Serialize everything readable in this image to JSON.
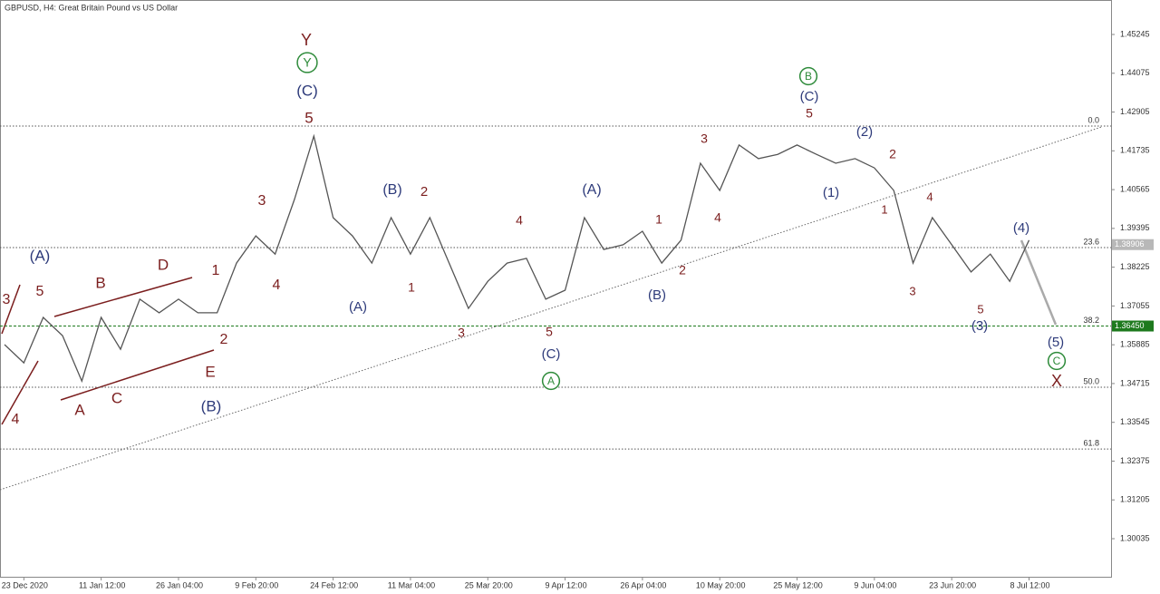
{
  "chart_data": {
    "type": "line",
    "title": "GBPUSD, H4:  Great Britain Pound vs US Dollar",
    "categories": [
      null,
      "23 Dec 2020",
      null,
      null,
      null,
      "11 Jan 12:00",
      null,
      null,
      null,
      "26 Jan 04:00",
      null,
      null,
      null,
      "9 Feb 20:00",
      null,
      null,
      null,
      "24 Feb 12:00",
      null,
      null,
      null,
      "11 Mar 04:00",
      null,
      null,
      null,
      "25 Mar 20:00",
      null,
      null,
      null,
      "9 Apr 12:00",
      null,
      null,
      null,
      "26 Apr 04:00",
      null,
      null,
      null,
      "10 May 20:00",
      null,
      null,
      null,
      "25 May 12:00",
      null,
      null,
      null,
      "9 Jun 04:00",
      null,
      null,
      null,
      "23 Jun 20:00",
      null,
      null,
      null,
      "8 Jul 12:00"
    ],
    "series": [
      {
        "name": "GBPUSD",
        "color": "#555555",
        "values": [
          1.3589,
          1.3534,
          1.3671,
          1.3616,
          1.3479,
          1.3671,
          1.3575,
          1.3726,
          1.3685,
          1.3726,
          1.3685,
          1.3685,
          1.3835,
          1.3917,
          1.3862,
          1.4027,
          1.4218,
          1.3972,
          1.3917,
          1.3835,
          1.3972,
          1.3862,
          1.3972,
          1.3835,
          1.3698,
          1.378,
          1.3835,
          1.3849,
          1.3726,
          1.3753,
          1.3972,
          1.3876,
          1.389,
          1.3931,
          1.3835,
          1.3904,
          1.4136,
          1.4054,
          1.4191,
          1.415,
          1.4163,
          1.4191,
          1.4163,
          1.4136,
          1.415,
          1.4122,
          1.4054,
          1.3835,
          1.3972,
          1.389,
          1.3808,
          1.3862,
          1.378,
          1.3904
        ]
      }
    ],
    "ylim": [
      1.28886,
      1.46285
    ],
    "yticks": [
      1.45245,
      1.44075,
      1.42905,
      1.41735,
      1.40565,
      1.39395,
      1.38225,
      1.37055,
      1.35885,
      1.34715,
      1.33545,
      1.32375,
      1.31205,
      1.30035
    ],
    "fib_levels": [
      {
        "value": 1.42482,
        "label": "0.0"
      },
      {
        "value": 1.38816,
        "label": "23.6"
      },
      {
        "value": 1.3645,
        "label": "38.2"
      },
      {
        "value": 1.34602,
        "label": "50.0"
      },
      {
        "value": 1.32741,
        "label": "61.8"
      }
    ],
    "price_tags": [
      {
        "value": 1.38906,
        "label": "1.38906",
        "color": "#b8b8b8"
      },
      {
        "value": 1.3645,
        "label": "1.36450",
        "color": "#1e7a1e"
      }
    ],
    "trendline": [
      1.3151,
      1.4245
    ],
    "wave_labels": [
      "Y",
      "Y",
      "(C)",
      "5",
      "(A)",
      "3",
      "5",
      "B",
      "D",
      "1",
      "4",
      "A",
      "C",
      "E",
      "2",
      "(B)",
      "3",
      "4",
      "(B)",
      "2",
      "(A)",
      "1",
      "3",
      "4",
      "5",
      "(C)",
      "A",
      "(A)",
      "1",
      "2",
      "(B)",
      "3",
      "4",
      "B",
      "(C)",
      "5",
      "(2)",
      "2",
      "(1)",
      "1",
      "4",
      "3",
      "5",
      "(3)",
      "(4)",
      "(5)",
      "C",
      "X"
    ]
  }
}
